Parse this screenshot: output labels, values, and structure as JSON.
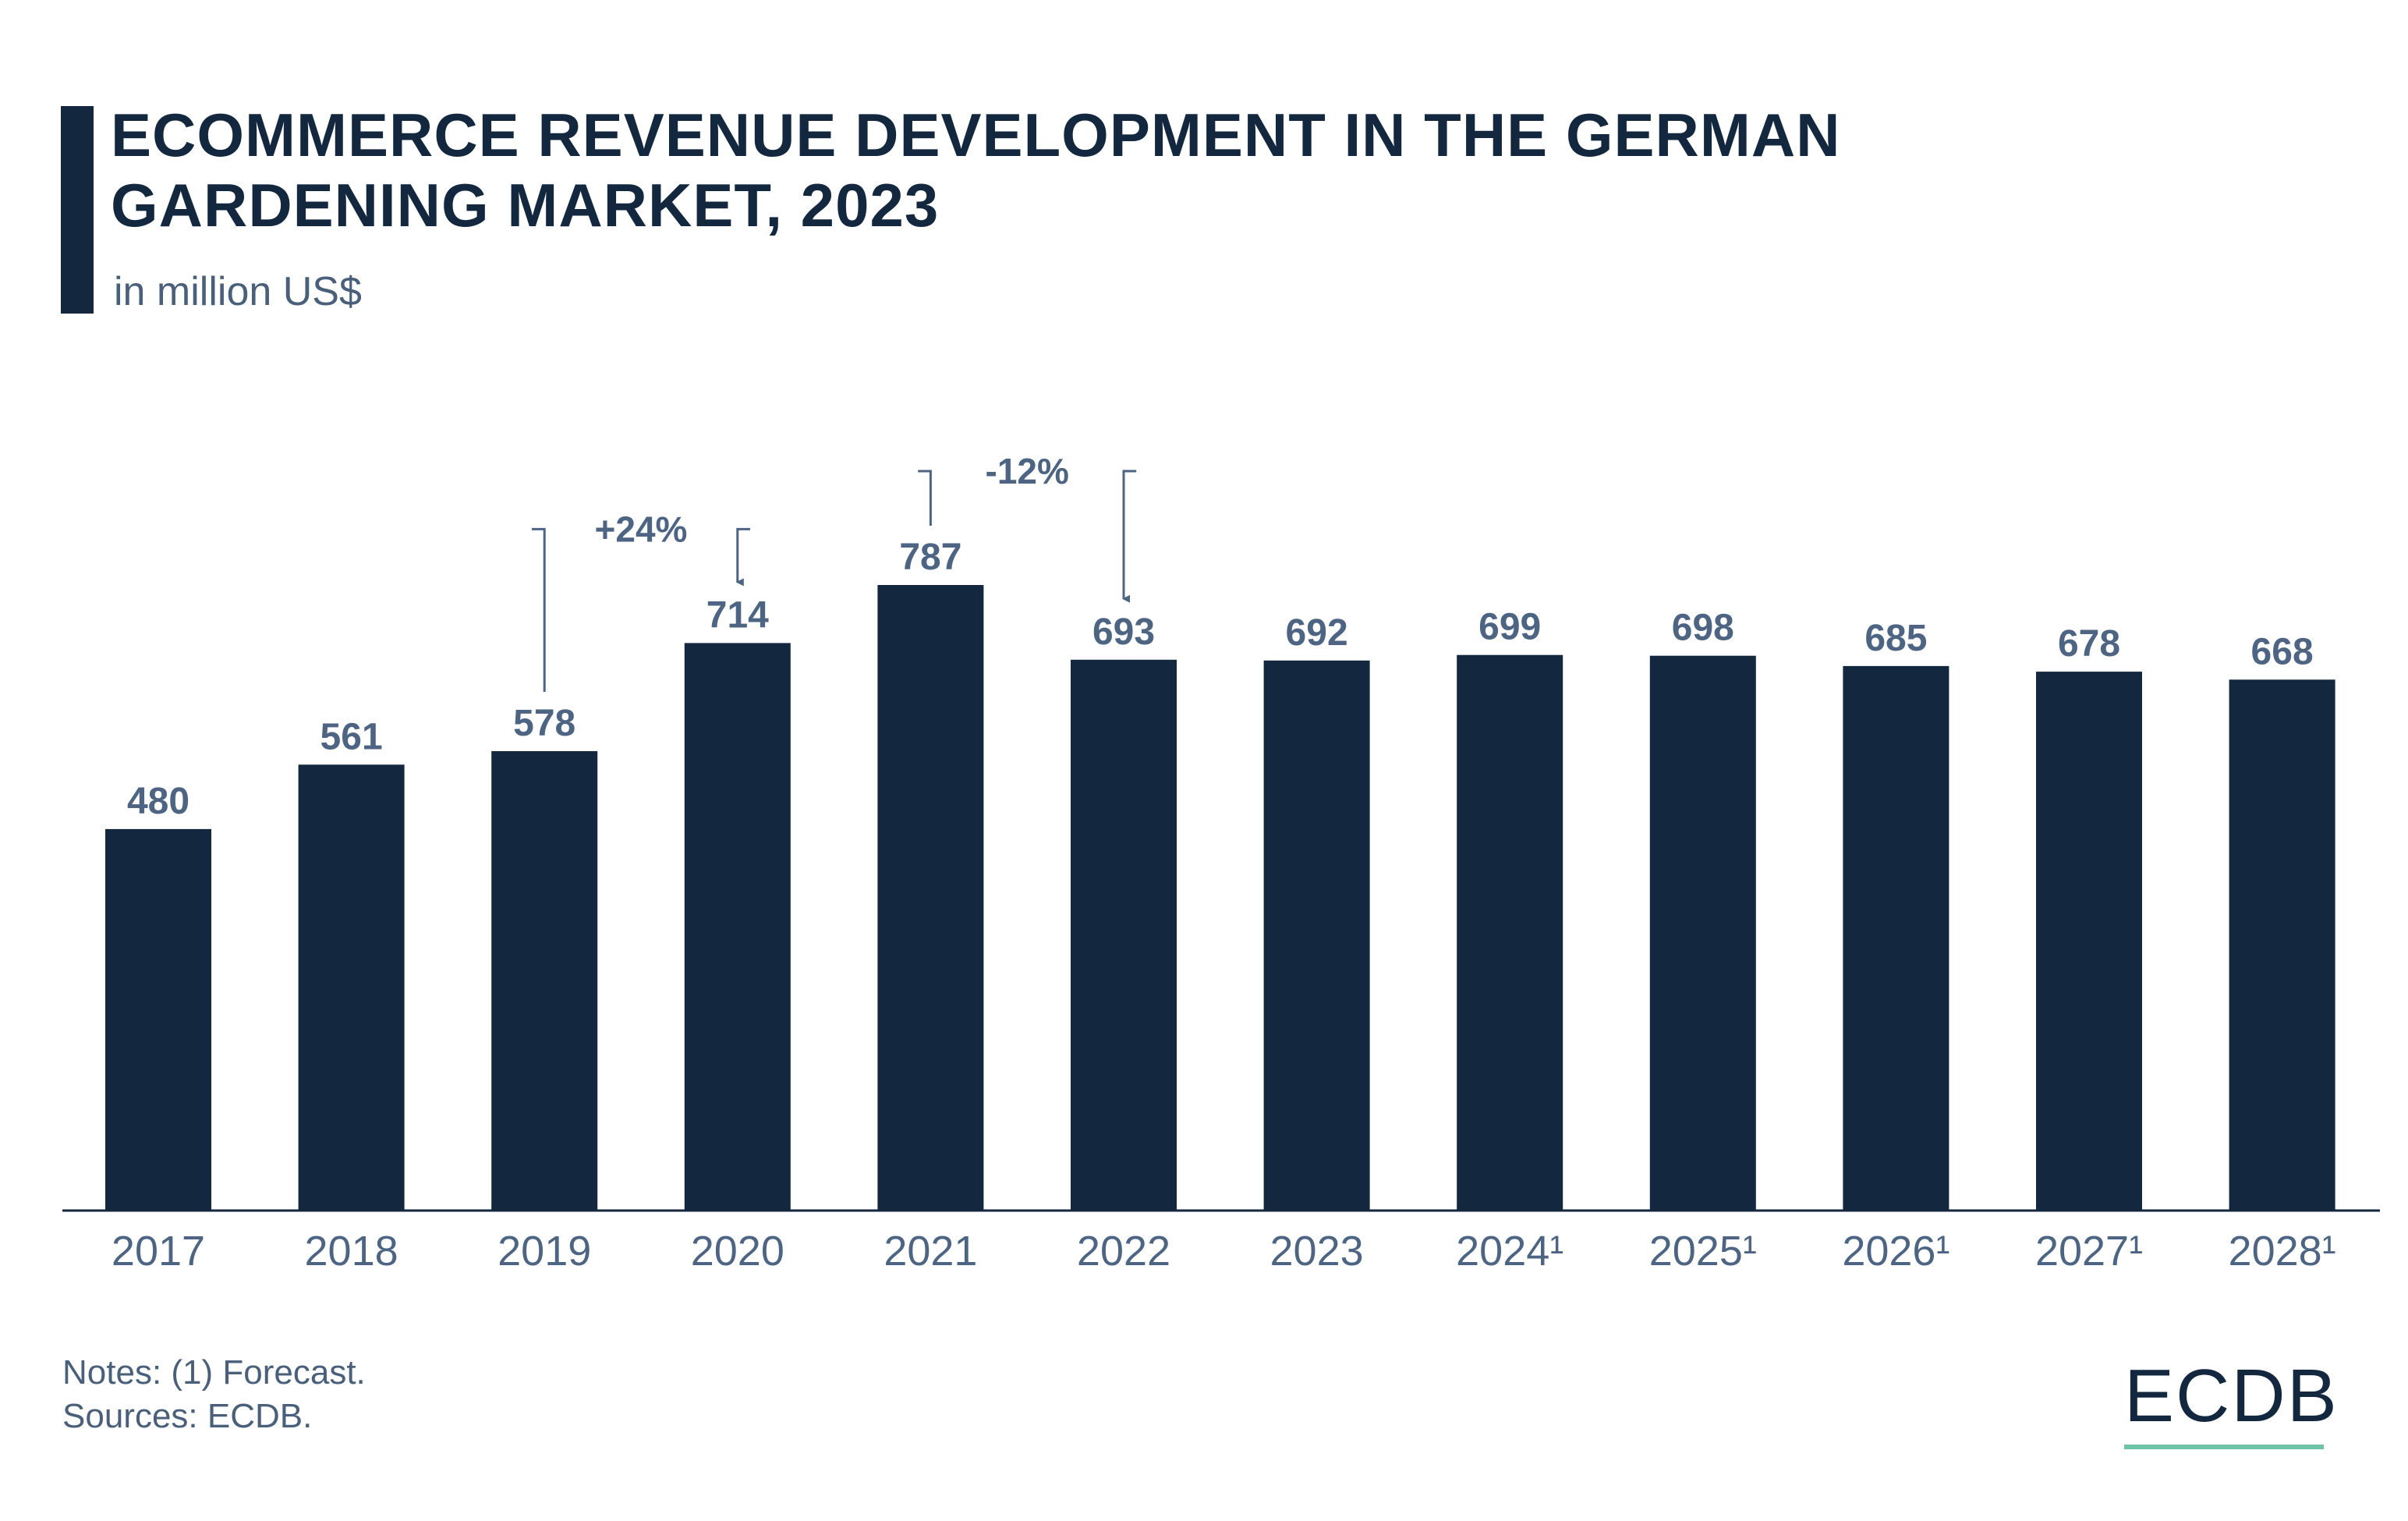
{
  "header": {
    "title": "ECOMMERCE REVENUE DEVELOPMENT IN THE GERMAN GARDENING MARKET, 2023",
    "subtitle": "in million US$"
  },
  "footer": {
    "notes": "Notes: (1) Forecast.",
    "sources": "Sources: ECDB."
  },
  "brand": {
    "logo": "ECDB"
  },
  "colors": {
    "bar": "#13273f",
    "text": "#4d6583",
    "accent": "#6cc3a6"
  },
  "chart_data": {
    "type": "bar",
    "categories": [
      "2017",
      "2018",
      "2019",
      "2020",
      "2021",
      "2022",
      "2023",
      "2024¹",
      "2025¹",
      "2026¹",
      "2027¹",
      "2028¹"
    ],
    "values": [
      480,
      561,
      578,
      714,
      787,
      693,
      692,
      699,
      698,
      685,
      678,
      668
    ],
    "title": "ECOMMERCE REVENUE DEVELOPMENT IN THE GERMAN GARDENING MARKET, 2023",
    "ylabel": "in million US$",
    "ylim": [
      0,
      787
    ],
    "grid": false,
    "legend": "none",
    "annotations": [
      {
        "label": "+24%",
        "from": "2019",
        "to": "2020"
      },
      {
        "label": "-12%",
        "from": "2021",
        "to": "2022"
      }
    ]
  }
}
